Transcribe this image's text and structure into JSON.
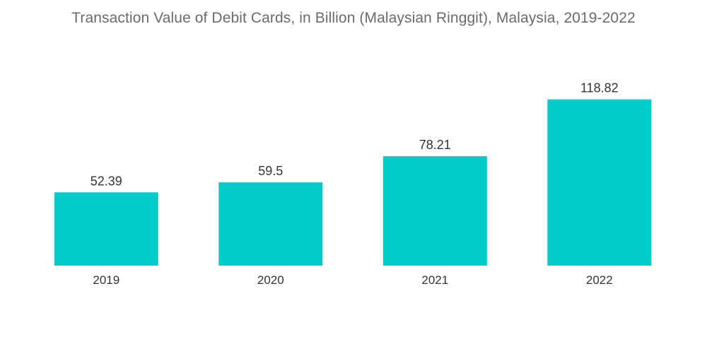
{
  "chart_data": {
    "type": "bar",
    "title": "Transaction Value of Debit Cards, in Billion (Malaysian Ringgit), Malaysia, 2019-2022",
    "categories": [
      "2019",
      "2020",
      "2021",
      "2022"
    ],
    "values": [
      52.39,
      59.5,
      78.21,
      118.82
    ],
    "value_labels": [
      "52.39",
      "59.5",
      "78.21",
      "118.82"
    ],
    "xlabel": "",
    "ylabel": "",
    "ylim": [
      0,
      130
    ],
    "grid": false,
    "legend": "none",
    "bar_color": "#00cccc"
  }
}
